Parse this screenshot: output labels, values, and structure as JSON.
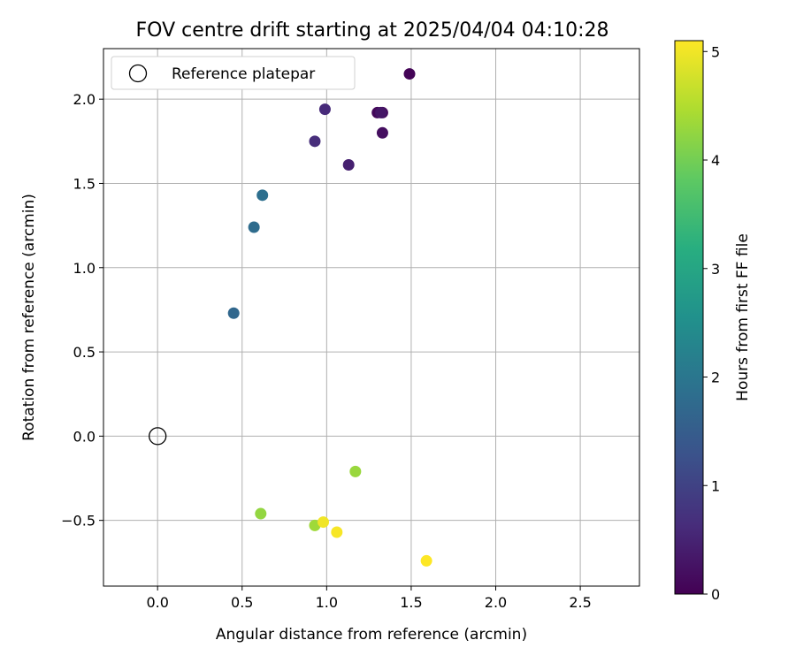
{
  "chart_data": {
    "type": "scatter",
    "title": "FOV centre drift starting at 2025/04/04 04:10:28",
    "xlabel": "Angular distance from reference (arcmin)",
    "ylabel": "Rotation from reference (arcmin)",
    "xlim": [
      -0.32,
      2.85
    ],
    "ylim": [
      -0.89,
      2.3
    ],
    "xticks": [
      0.0,
      0.5,
      1.0,
      1.5,
      2.0,
      2.5
    ],
    "xtick_labels": [
      "0.0",
      "0.5",
      "1.0",
      "1.5",
      "2.0",
      "2.5"
    ],
    "yticks": [
      -0.5,
      0.0,
      0.5,
      1.0,
      1.5,
      2.0
    ],
    "ytick_labels": [
      "−0.5",
      "0.0",
      "0.5",
      "1.0",
      "1.5",
      "2.0"
    ],
    "grid": true,
    "legend": {
      "placement": "top-left",
      "entries": [
        "Reference platepar"
      ]
    },
    "reference_point": {
      "name": "Reference platepar",
      "x": 0.0,
      "y": 0.0
    },
    "colorbar": {
      "label": "Hours from first FF file",
      "min": 0,
      "max": 5.1,
      "ticks": [
        0,
        1,
        2,
        3,
        4,
        5
      ],
      "tick_labels": [
        "0",
        "1",
        "2",
        "3",
        "4",
        "5"
      ],
      "colormap": "viridis"
    },
    "points": [
      {
        "x": 1.49,
        "y": 2.15,
        "hours": 0.05
      },
      {
        "x": 1.3,
        "y": 1.92,
        "hours": 0.1
      },
      {
        "x": 1.33,
        "y": 1.92,
        "hours": 0.15
      },
      {
        "x": 1.33,
        "y": 1.8,
        "hours": 0.2
      },
      {
        "x": 1.32,
        "y": 1.92,
        "hours": 0.3
      },
      {
        "x": 1.13,
        "y": 1.61,
        "hours": 0.45
      },
      {
        "x": 0.99,
        "y": 1.94,
        "hours": 0.6
      },
      {
        "x": 0.93,
        "y": 1.75,
        "hours": 0.65
      },
      {
        "x": 0.62,
        "y": 1.43,
        "hours": 1.85
      },
      {
        "x": 0.57,
        "y": 1.24,
        "hours": 1.8
      },
      {
        "x": 0.45,
        "y": 0.73,
        "hours": 1.7
      },
      {
        "x": 1.17,
        "y": -0.21,
        "hours": 4.3
      },
      {
        "x": 0.61,
        "y": -0.46,
        "hours": 4.25
      },
      {
        "x": 0.93,
        "y": -0.53,
        "hours": 4.35
      },
      {
        "x": 0.98,
        "y": -0.51,
        "hours": 5.0
      },
      {
        "x": 1.06,
        "y": -0.57,
        "hours": 5.05
      },
      {
        "x": 1.59,
        "y": -0.74,
        "hours": 5.1
      }
    ]
  }
}
